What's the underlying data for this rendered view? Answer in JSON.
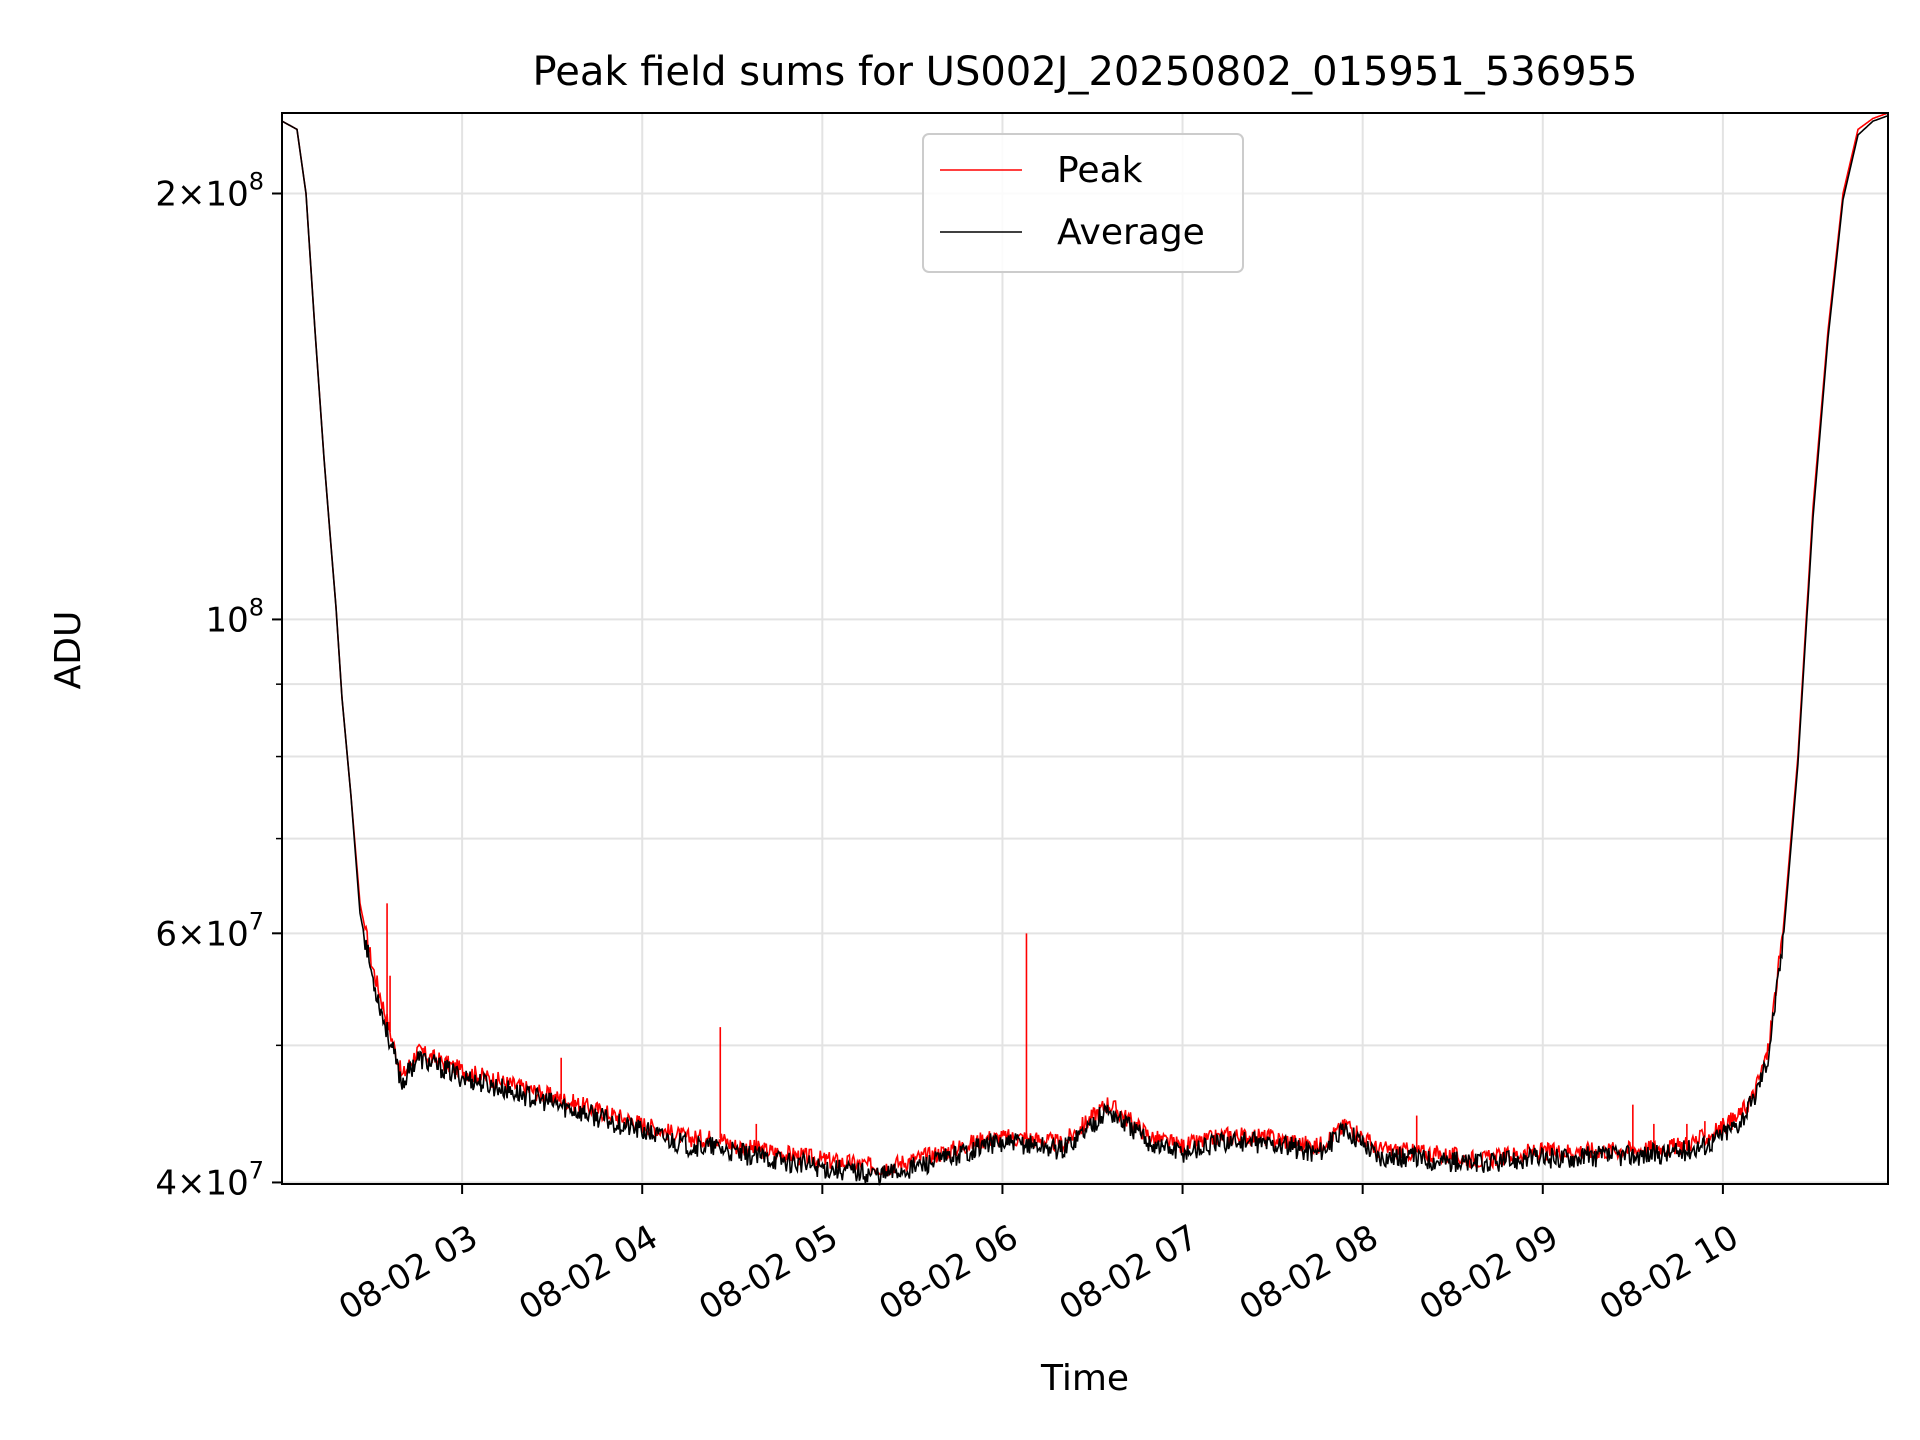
{
  "chart_data": {
    "type": "line",
    "title": "Peak field sums for US002J_20250802_015951_536955",
    "xlabel": "Time",
    "ylabel": "ADU",
    "x_ticks": [
      "08-02 03",
      "08-02 04",
      "08-02 05",
      "08-02 06",
      "08-02 07",
      "08-02 08",
      "08-02 09",
      "08-02 10"
    ],
    "y_ticks": [
      {
        "value": 40000000,
        "mantissa": "4",
        "exponent": "7"
      },
      {
        "value": 60000000,
        "mantissa": "6",
        "exponent": "7"
      },
      {
        "value": 100000000,
        "mantissa": "",
        "exponent": "8"
      },
      {
        "value": 200000000,
        "mantissa": "2",
        "exponent": "8"
      }
    ],
    "yscale": "log",
    "xlim": [
      "08-02 02:00",
      "08-02 10:55"
    ],
    "ylim": [
      39900000,
      228000000
    ],
    "grid": true,
    "legend_position": "top-center",
    "series": [
      {
        "name": "Peak",
        "color": "#ff0000",
        "x": [
          "08-02 02:00",
          "08-02 02:05",
          "08-02 02:08",
          "08-02 02:11",
          "08-02 02:14",
          "08-02 02:16",
          "08-02 02:18",
          "08-02 02:20",
          "08-02 02:23",
          "08-02 02:26",
          "08-02 02:30",
          "08-02 02:34",
          "08-02 02:40",
          "08-02 02:45",
          "08-02 02:50",
          "08-02 02:55",
          "08-02 03:00",
          "08-02 03:15",
          "08-02 03:30",
          "08-02 03:45",
          "08-02 04:00",
          "08-02 04:15",
          "08-02 04:26",
          "08-02 04:30",
          "08-02 04:45",
          "08-02 05:00",
          "08-02 05:20",
          "08-02 05:40",
          "08-02 05:55",
          "08-02 06:08",
          "08-02 06:20",
          "08-02 06:35",
          "08-02 06:50",
          "08-02 07:00",
          "08-02 07:15",
          "08-02 07:30",
          "08-02 07:45",
          "08-02 07:55",
          "08-02 08:05",
          "08-02 08:20",
          "08-02 08:40",
          "08-02 08:55",
          "08-02 09:10",
          "08-02 09:30",
          "08-02 09:45",
          "08-02 09:55",
          "08-02 10:05",
          "08-02 10:10",
          "08-02 10:15",
          "08-02 10:20",
          "08-02 10:25",
          "08-02 10:30",
          "08-02 10:35",
          "08-02 10:40",
          "08-02 10:45",
          "08-02 10:50",
          "08-02 10:55"
        ],
        "y": [
          225000000,
          222000000,
          200000000,
          160000000,
          130000000,
          115000000,
          102000000,
          88000000,
          75000000,
          63000000,
          57000000,
          53000000,
          47500000,
          49500000,
          49000000,
          48500000,
          48000000,
          47000000,
          46000000,
          45000000,
          44000000,
          43000000,
          43000000,
          42500000,
          42000000,
          41500000,
          41000000,
          42000000,
          43000000,
          43000000,
          42600000,
          45500000,
          43000000,
          42400000,
          43200000,
          43000000,
          42400000,
          44000000,
          42200000,
          42000000,
          41500000,
          42000000,
          42100000,
          42200000,
          42400000,
          43100000,
          44500000,
          46000000,
          49500000,
          60000000,
          80000000,
          120000000,
          160000000,
          200000000,
          222000000,
          226000000,
          228000000
        ],
        "spikes": [
          {
            "x": "08-02 02:35",
            "y": 63000000
          },
          {
            "x": "08-02 02:36",
            "y": 56000000
          },
          {
            "x": "08-02 02:47",
            "y": 49800000
          },
          {
            "x": "08-02 03:33",
            "y": 49000000
          },
          {
            "x": "08-02 03:45",
            "y": 45500000
          },
          {
            "x": "08-02 04:26",
            "y": 51500000
          },
          {
            "x": "08-02 04:38",
            "y": 44000000
          },
          {
            "x": "08-02 06:08",
            "y": 60000000
          },
          {
            "x": "08-02 08:18",
            "y": 44600000
          },
          {
            "x": "08-02 09:30",
            "y": 45400000
          },
          {
            "x": "08-02 09:37",
            "y": 44000000
          },
          {
            "x": "08-02 09:48",
            "y": 44000000
          },
          {
            "x": "08-02 09:54",
            "y": 44200000
          }
        ]
      },
      {
        "name": "Average",
        "color": "#000000",
        "x": [
          "08-02 02:00",
          "08-02 02:05",
          "08-02 02:08",
          "08-02 02:11",
          "08-02 02:14",
          "08-02 02:16",
          "08-02 02:18",
          "08-02 02:20",
          "08-02 02:23",
          "08-02 02:26",
          "08-02 02:30",
          "08-02 02:34",
          "08-02 02:40",
          "08-02 02:45",
          "08-02 02:50",
          "08-02 02:55",
          "08-02 03:00",
          "08-02 03:15",
          "08-02 03:30",
          "08-02 03:45",
          "08-02 04:00",
          "08-02 04:15",
          "08-02 04:26",
          "08-02 04:30",
          "08-02 04:45",
          "08-02 05:00",
          "08-02 05:20",
          "08-02 05:40",
          "08-02 05:55",
          "08-02 06:08",
          "08-02 06:20",
          "08-02 06:35",
          "08-02 06:50",
          "08-02 07:00",
          "08-02 07:15",
          "08-02 07:30",
          "08-02 07:45",
          "08-02 07:55",
          "08-02 08:05",
          "08-02 08:20",
          "08-02 08:40",
          "08-02 08:55",
          "08-02 09:10",
          "08-02 09:30",
          "08-02 09:45",
          "08-02 09:55",
          "08-02 10:05",
          "08-02 10:10",
          "08-02 10:15",
          "08-02 10:20",
          "08-02 10:25",
          "08-02 10:30",
          "08-02 10:35",
          "08-02 10:40",
          "08-02 10:45",
          "08-02 10:50",
          "08-02 10:55"
        ],
        "y": [
          225000000,
          222000000,
          200000000,
          160000000,
          130000000,
          115000000,
          102000000,
          88000000,
          75000000,
          62000000,
          56000000,
          52000000,
          47000000,
          49000000,
          48500000,
          48000000,
          47500000,
          46500000,
          45500000,
          44500000,
          43500000,
          42500000,
          42300000,
          42000000,
          41500000,
          41000000,
          40500000,
          41500000,
          42600000,
          42600000,
          42200000,
          45000000,
          42600000,
          42000000,
          42800000,
          42600000,
          42000000,
          43600000,
          41800000,
          41600000,
          41200000,
          41600000,
          41700000,
          41800000,
          42000000,
          42600000,
          44000000,
          45600000,
          49000000,
          59000000,
          79000000,
          118000000,
          158000000,
          198000000,
          220000000,
          225000000,
          227000000
        ]
      }
    ]
  }
}
